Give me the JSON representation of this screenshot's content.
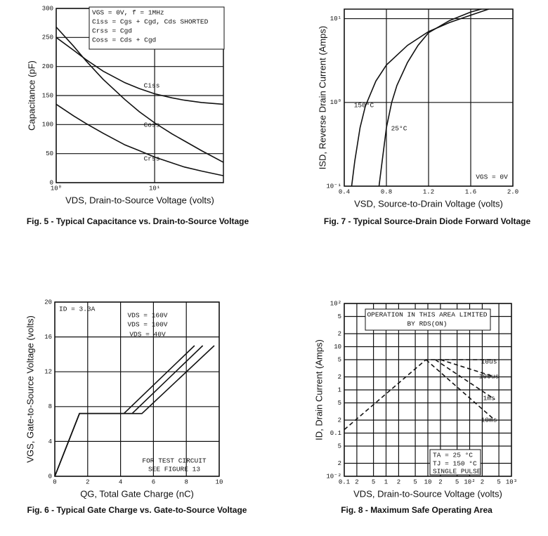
{
  "chart_data": [
    {
      "type": "line",
      "title": "Fig. 5 - Typical Capacitance vs. Drain-to-Source Voltage",
      "x_label": "VDS, Drain-to-Source Voltage (volts)",
      "y_label": "Capacitance (pF)",
      "xlog": true,
      "ylog": false,
      "grid": true,
      "xlim": [
        1,
        50
      ],
      "ylim": [
        0,
        300
      ],
      "xticks": [
        {
          "value": 1,
          "label": "10⁰"
        },
        {
          "value": 10,
          "label": "10¹"
        }
      ],
      "yticks": [
        0,
        50,
        100,
        150,
        200,
        250,
        300
      ],
      "annotations": [
        "VGS = 0V,  f = 1MHz",
        "Ciss = Cgs + Cgd,  Cds SHORTED",
        "Crss = Cgd",
        "Coss = Cds + Cgd"
      ],
      "series": [
        {
          "name": "Ciss",
          "color": "#111111",
          "x": [
            1,
            1.5,
            2,
            3,
            5,
            7,
            10,
            15,
            20,
            30,
            50
          ],
          "values": [
            250,
            228,
            212,
            192,
            172,
            162,
            153,
            146,
            142,
            138,
            135
          ]
        },
        {
          "name": "Coss",
          "color": "#111111",
          "x": [
            1,
            1.5,
            2,
            3,
            5,
            7,
            10,
            15,
            20,
            30,
            50
          ],
          "values": [
            268,
            235,
            210,
            178,
            143,
            122,
            103,
            84,
            72,
            55,
            35
          ]
        },
        {
          "name": "Crss",
          "color": "#111111",
          "x": [
            1,
            1.5,
            2,
            3,
            5,
            7,
            10,
            15,
            20,
            30,
            50
          ],
          "values": [
            135,
            115,
            102,
            85,
            65,
            55,
            44,
            34,
            27,
            20,
            12
          ]
        }
      ]
    },
    {
      "type": "line",
      "title": "Fig. 7 - Typical Source-Drain Diode Forward Voltage",
      "x_label": "VSD, Source-to-Drain Voltage (volts)",
      "y_label": "ISD, Reverse Drain Current (Amps)",
      "xlog": false,
      "ylog": true,
      "grid": true,
      "xlim": [
        0.4,
        2
      ],
      "ylim": [
        0.1,
        13
      ],
      "xticks": [
        0.4,
        0.8,
        1.2,
        1.6,
        {
          "value": 2,
          "label": "2.0"
        }
      ],
      "yticks": [
        {
          "value": 0.1,
          "label": "10⁻¹"
        },
        {
          "value": 1,
          "label": "10⁰"
        },
        {
          "value": 10,
          "label": "10¹"
        }
      ],
      "annotations": [
        "VGS = 0V"
      ],
      "series": [
        {
          "name": "150°C",
          "color": "#111111",
          "x": [
            0.47,
            0.5,
            0.55,
            0.6,
            0.7,
            0.8,
            1.0,
            1.2,
            1.4,
            1.6,
            1.77
          ],
          "values": [
            0.1,
            0.2,
            0.5,
            0.9,
            1.8,
            2.8,
            4.8,
            7,
            9,
            11,
            13
          ]
        },
        {
          "name": "25°C",
          "color": "#111111",
          "x": [
            0.73,
            0.76,
            0.8,
            0.85,
            0.9,
            1.0,
            1.1,
            1.2,
            1.4,
            1.6,
            1.7
          ],
          "values": [
            0.1,
            0.2,
            0.5,
            1,
            1.6,
            3,
            4.8,
            6.8,
            9.5,
            12,
            13
          ]
        }
      ]
    },
    {
      "type": "line",
      "title": "Fig. 6 - Typical Gate Charge vs. Gate-to-Source Voltage",
      "x_label": "QG, Total Gate Charge (nC)",
      "y_label": "VGS, Gate-to-Source Voltage (volts)",
      "xlog": false,
      "ylog": false,
      "grid": true,
      "xlim": [
        0,
        10
      ],
      "ylim": [
        0,
        20
      ],
      "xticks": [
        0,
        2,
        4,
        6,
        8,
        10
      ],
      "yticks": [
        0,
        4,
        8,
        12,
        16,
        20
      ],
      "annotations": [
        "ID = 3.3A",
        "FOR TEST CIRCUIT",
        "SEE FIGURE 13"
      ],
      "series": [
        {
          "name": "VDS = 160V",
          "color": "#111111",
          "x": [
            0,
            1.5,
            5.3,
            9.7
          ],
          "values": [
            0,
            7.2,
            7.2,
            15
          ]
        },
        {
          "name": "VDS = 100V",
          "color": "#111111",
          "x": [
            0,
            1.5,
            4.7,
            9
          ],
          "values": [
            0,
            7.2,
            7.2,
            15
          ]
        },
        {
          "name": "VDS = 40V",
          "color": "#111111",
          "x": [
            0,
            1.5,
            4.2,
            8.5
          ],
          "values": [
            0,
            7.2,
            7.2,
            15
          ]
        }
      ]
    },
    {
      "type": "line",
      "title": "Fig. 8 - Maximum Safe Operating Area",
      "x_label": "VDS, Drain-to-Source Voltage (volts)",
      "y_label": "ID, Drain Current (Amps)",
      "xlog": true,
      "ylog": true,
      "grid": true,
      "dashed": true,
      "xlim": [
        0.1,
        1000
      ],
      "ylim": [
        0.01,
        100
      ],
      "xticks": [
        0.1,
        {
          "value": 0.2,
          "label": "2"
        },
        {
          "value": 0.5,
          "label": "5"
        },
        1,
        {
          "value": 2,
          "label": "2"
        },
        5,
        10,
        {
          "value": 20,
          "label": "2"
        },
        {
          "value": 50,
          "label": "5"
        },
        {
          "value": 100,
          "label": "10²"
        },
        {
          "value": 200,
          "label": "2"
        },
        {
          "value": 500,
          "label": "5"
        },
        {
          "value": 1000,
          "label": "10³"
        }
      ],
      "yticks": [
        {
          "value": 0.01,
          "label": "10⁻²"
        },
        {
          "value": 0.02,
          "label": "2"
        },
        {
          "value": 0.05,
          "label": "5"
        },
        0.1,
        {
          "value": 0.2,
          "label": "2"
        },
        {
          "value": 0.5,
          "label": "5"
        },
        1,
        2,
        5,
        10,
        {
          "value": 20,
          "label": "2"
        },
        {
          "value": 50,
          "label": "5"
        },
        {
          "value": 100,
          "label": "10²"
        }
      ],
      "annotations": [
        "OPERATION IN THIS AREA LIMITED",
        "BY RDS(ON)",
        "TA = 25 °C",
        "TJ = 150 °C",
        "SINGLE PULSE"
      ],
      "series": [
        {
          "name": "10us",
          "color": "#111111",
          "x": [
            0.1,
            9,
            400
          ],
          "values": [
            0.12,
            5,
            5
          ]
        },
        {
          "name": "100us",
          "color": "#111111",
          "x": [
            20,
            400
          ],
          "values": [
            5,
            2
          ]
        },
        {
          "name": "1ms",
          "color": "#111111",
          "x": [
            15,
            400
          ],
          "values": [
            5,
            0.6
          ]
        },
        {
          "name": "10ms",
          "color": "#111111",
          "x": [
            9,
            400
          ],
          "values": [
            5,
            0.2
          ]
        }
      ]
    }
  ]
}
